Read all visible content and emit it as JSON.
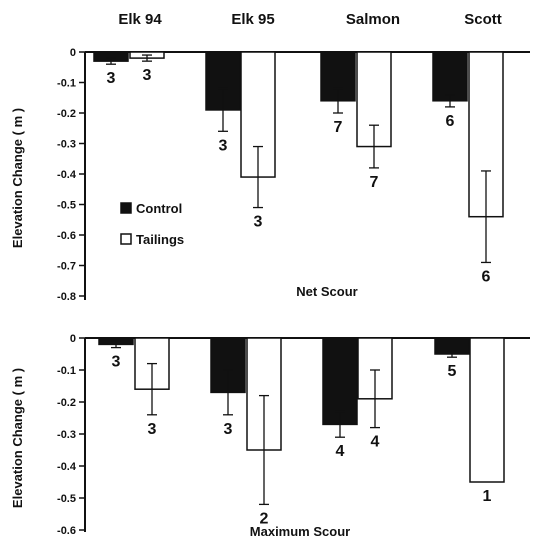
{
  "chart_data": [
    {
      "type": "bar",
      "panel": "top",
      "title": "Net Scour",
      "ylabel": "Elevation Change ( m )",
      "ylim": [
        -0.8,
        0
      ],
      "yticks": [
        0,
        -0.1,
        -0.2,
        -0.3,
        -0.4,
        -0.5,
        -0.6,
        -0.7,
        -0.8
      ],
      "ytick_labels": [
        "0",
        "-0.1",
        "-0.2",
        "-0.3",
        "-0.4",
        "-0.5",
        "-0.6",
        "-0.7",
        "-0.8"
      ],
      "categories": [
        "Elk 94",
        "Elk 95",
        "Salmon",
        "Scott"
      ],
      "legend": {
        "placement": "left-middle",
        "entries": [
          {
            "label": "Control",
            "color": "#111111",
            "fill": "solid"
          },
          {
            "label": "Tailings",
            "color": "#ffffff",
            "fill": "hollow"
          }
        ]
      },
      "series": [
        {
          "name": "Control",
          "values": [
            -0.03,
            -0.19,
            -0.16,
            -0.16
          ],
          "err": [
            0.01,
            0.07,
            0.04,
            0.02
          ],
          "n": [
            "3",
            "3",
            "7",
            "6"
          ]
        },
        {
          "name": "Tailings",
          "values": [
            -0.02,
            -0.41,
            -0.31,
            -0.54
          ],
          "err": [
            0.01,
            0.1,
            0.07,
            0.15
          ],
          "n": [
            "3",
            "3",
            "7",
            "6"
          ]
        }
      ]
    },
    {
      "type": "bar",
      "panel": "bottom",
      "title": "Maximum Scour",
      "ylabel": "Elevation Change ( m )",
      "ylim": [
        -0.6,
        0
      ],
      "yticks": [
        0,
        -0.1,
        -0.2,
        -0.3,
        -0.4,
        -0.5,
        -0.6
      ],
      "ytick_labels": [
        "0",
        "-0.1",
        "-0.2",
        "-0.3",
        "-0.4",
        "-0.5",
        "-0.6"
      ],
      "categories": [
        "Elk 94",
        "Elk 95",
        "Salmon",
        "Scott"
      ],
      "series": [
        {
          "name": "Control",
          "values": [
            -0.02,
            -0.17,
            -0.27,
            -0.05
          ],
          "err": [
            0.01,
            0.07,
            0.04,
            0.01
          ],
          "n": [
            "3",
            "3",
            "4",
            "5"
          ]
        },
        {
          "name": "Tailings",
          "values": [
            -0.16,
            -0.35,
            -0.19,
            -0.45
          ],
          "err": [
            0.08,
            0.17,
            0.09,
            0
          ],
          "n": [
            "3",
            "2",
            "4",
            "1"
          ]
        }
      ]
    }
  ]
}
